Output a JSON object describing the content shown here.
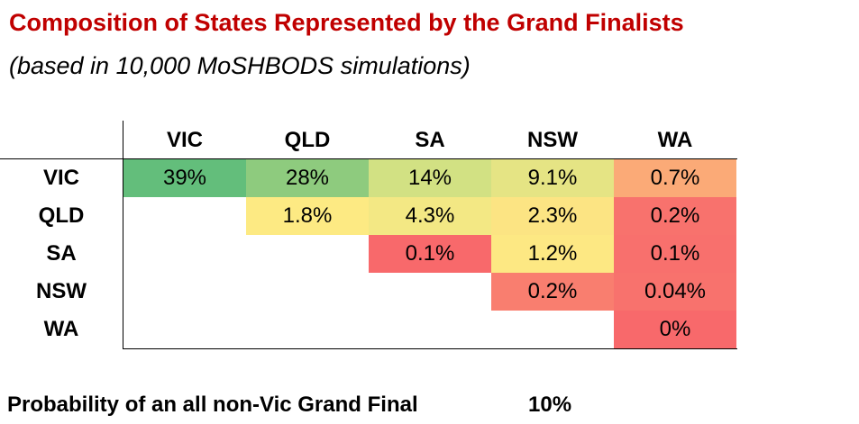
{
  "header": {
    "title": "Composition of States Represented by the Grand Finalists",
    "subtitle": "(based in 10,000 MoSHBODS simulations)"
  },
  "chart_data": {
    "type": "heatmap",
    "columns": [
      "VIC",
      "QLD",
      "SA",
      "NSW",
      "WA"
    ],
    "rows": [
      "VIC",
      "QLD",
      "SA",
      "NSW",
      "WA"
    ],
    "cells": [
      [
        {
          "label": "39%",
          "color": "#63be7b"
        },
        {
          "label": "28%",
          "color": "#8ecb7e"
        },
        {
          "label": "14%",
          "color": "#d2e183"
        },
        {
          "label": "9.1%",
          "color": "#e5e484"
        },
        {
          "label": "0.7%",
          "color": "#fbaa77"
        }
      ],
      [
        null,
        {
          "label": "1.8%",
          "color": "#fdea83"
        },
        {
          "label": "4.3%",
          "color": "#f3e884"
        },
        {
          "label": "2.3%",
          "color": "#fce483"
        },
        {
          "label": "0.2%",
          "color": "#f8726d"
        }
      ],
      [
        null,
        null,
        {
          "label": "0.1%",
          "color": "#f8696b"
        },
        {
          "label": "1.2%",
          "color": "#fde883"
        },
        {
          "label": "0.1%",
          "color": "#f8706d"
        }
      ],
      [
        null,
        null,
        null,
        {
          "label": "0.2%",
          "color": "#f97e6f"
        },
        {
          "label": "0.04%",
          "color": "#f8726d"
        }
      ],
      [
        null,
        null,
        null,
        null,
        {
          "label": "0%",
          "color": "#f8696b"
        }
      ]
    ]
  },
  "footer": {
    "label": "Probability of an all non-Vic Grand Final",
    "value": "10%"
  }
}
